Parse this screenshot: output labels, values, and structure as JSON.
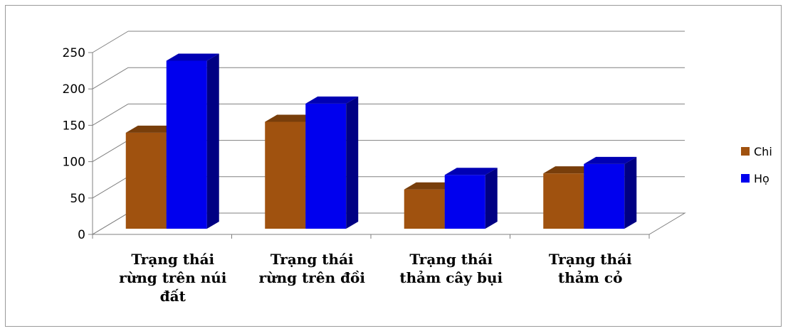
{
  "chart_data": {
    "type": "bar",
    "categories": [
      [
        "Trạng thái",
        "rừng trên núi",
        "đất"
      ],
      [
        "Trạng thái",
        "rừng trên đồi"
      ],
      [
        "Trạng thái",
        "thảm cây bụi"
      ],
      [
        "Trạng thái",
        "thảm cỏ"
      ]
    ],
    "series": [
      {
        "name": "Chi",
        "values": [
          132,
          147,
          54,
          76
        ],
        "color": "#A0520F"
      },
      {
        "name": "Họ",
        "values": [
          231,
          172,
          74,
          89
        ],
        "color": "#0000EE"
      }
    ],
    "yticks": [
      0,
      50,
      100,
      150,
      200,
      250
    ],
    "ylim": [
      0,
      250
    ],
    "grid": true,
    "legend": "right",
    "style": "3d-column"
  }
}
